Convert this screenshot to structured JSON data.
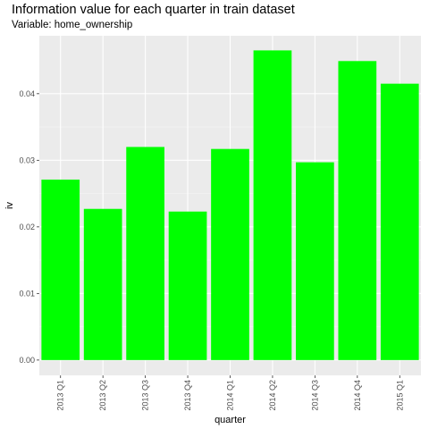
{
  "chart_data": {
    "type": "bar",
    "title": "Information value for each quarter in train dataset",
    "subtitle": "Variable: home_ownership",
    "xlabel": "quarter",
    "ylabel": "iv",
    "categories": [
      "2013 Q1",
      "2013 Q2",
      "2013 Q3",
      "2013 Q4",
      "2014 Q1",
      "2014 Q2",
      "2014 Q3",
      "2014 Q4",
      "2015 Q1"
    ],
    "values": [
      0.0271,
      0.0227,
      0.032,
      0.0223,
      0.0317,
      0.0465,
      0.0297,
      0.0449,
      0.0415
    ],
    "ylim": [
      -0.0023,
      0.0487
    ],
    "yticks": [
      0.0,
      0.01,
      0.02,
      0.03,
      0.04
    ],
    "ytick_labels": [
      "0.00",
      "0.01",
      "0.02",
      "0.03",
      "0.04"
    ],
    "bar_color": "#00ff00",
    "panel_background": "#ebebeb",
    "grid": true
  }
}
